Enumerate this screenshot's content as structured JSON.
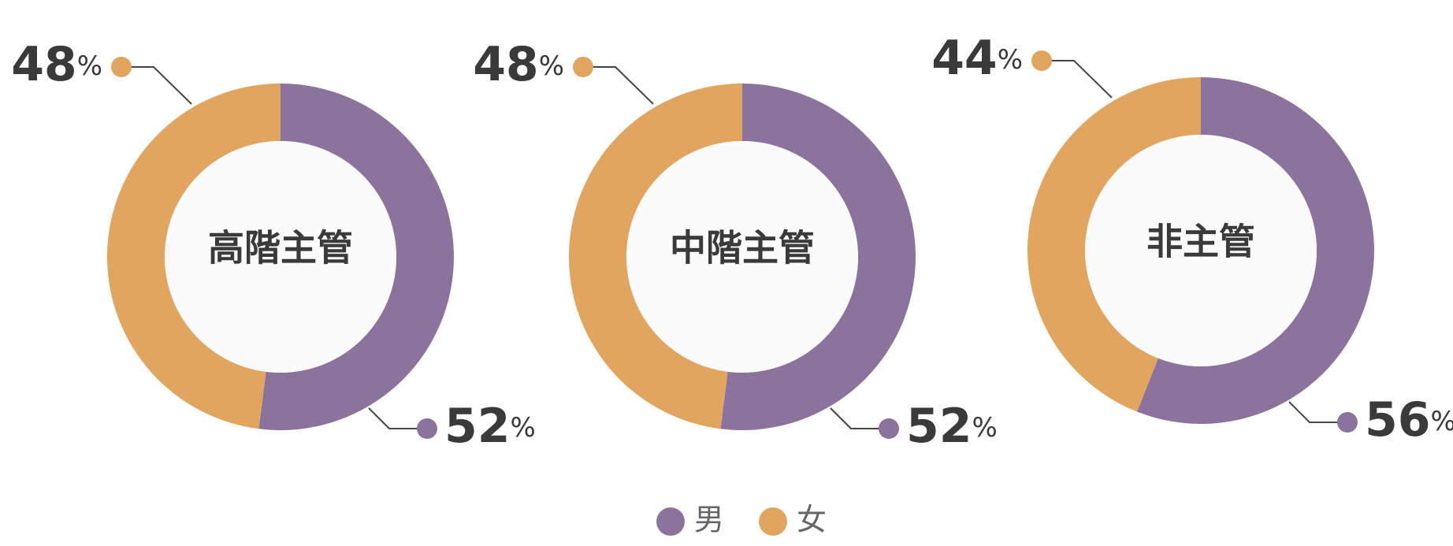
{
  "chart_data": [
    {
      "type": "pie",
      "title": "高階主管",
      "categories": [
        "男",
        "女"
      ],
      "values": [
        52,
        48
      ],
      "value_labels": [
        "52%",
        "48%"
      ],
      "colors": [
        "#8b739e",
        "#e2a55f"
      ]
    },
    {
      "type": "pie",
      "title": "中階主管",
      "categories": [
        "男",
        "女"
      ],
      "values": [
        52,
        48
      ],
      "value_labels": [
        "52%",
        "48%"
      ],
      "colors": [
        "#8b739e",
        "#e2a55f"
      ]
    },
    {
      "type": "pie",
      "title": "非主管",
      "categories": [
        "男",
        "女"
      ],
      "values": [
        56,
        44
      ],
      "value_labels": [
        "56%",
        "44%"
      ],
      "colors": [
        "#8b739e",
        "#e2a55f"
      ]
    }
  ]
}
